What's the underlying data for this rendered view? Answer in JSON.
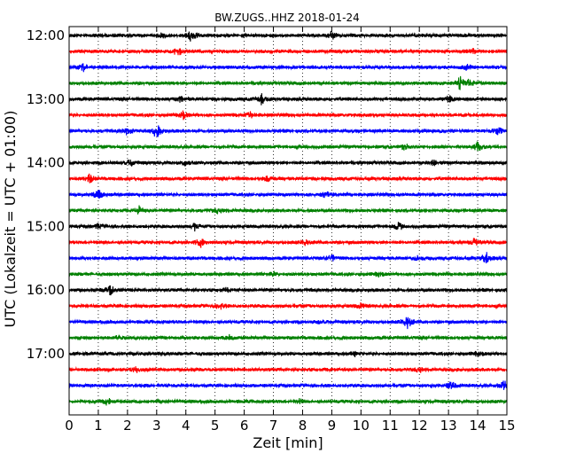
{
  "chart_data": {
    "type": "line",
    "title": "BW.ZUGS..HHZ 2018-01-24",
    "xlabel": "Zeit  [min]",
    "ylabel": "UTC (Lokalzeit = UTC + 01:00)",
    "xlim": [
      0,
      15
    ],
    "x_ticks": [
      0,
      1,
      2,
      3,
      4,
      5,
      6,
      7,
      8,
      9,
      10,
      11,
      12,
      13,
      14,
      15
    ],
    "x_tick_labels": [
      "0",
      "1",
      "2",
      "3",
      "4",
      "5",
      "6",
      "7",
      "8",
      "9",
      "10",
      "11",
      "12",
      "13",
      "14",
      "15"
    ],
    "y_tick_labels": [
      "12:00",
      "13:00",
      "14:00",
      "15:00",
      "16:00",
      "17:00"
    ],
    "grid": "vertical dotted",
    "trace_colors": [
      "#000000",
      "#ff0000",
      "#0000ff",
      "#008000"
    ],
    "traces": [
      {
        "start": "12:00",
        "events": [
          [
            4.2,
            1.0
          ],
          [
            9.0,
            0.6
          ],
          [
            3.2,
            0.4
          ]
        ]
      },
      {
        "start": "12:15",
        "events": [
          [
            3.7,
            0.9
          ],
          [
            13.8,
            0.5
          ]
        ]
      },
      {
        "start": "12:30",
        "events": [
          [
            0.5,
            0.6
          ],
          [
            13.6,
            0.5
          ]
        ]
      },
      {
        "start": "12:45",
        "events": [
          [
            13.4,
            1.0
          ],
          [
            13.7,
            0.7
          ]
        ]
      },
      {
        "start": "13:00",
        "events": [
          [
            6.6,
            0.9
          ],
          [
            13.0,
            0.6
          ],
          [
            3.8,
            0.5
          ]
        ]
      },
      {
        "start": "13:15",
        "events": [
          [
            3.9,
            0.6
          ],
          [
            6.2,
            0.4
          ]
        ]
      },
      {
        "start": "13:30",
        "events": [
          [
            3.0,
            1.2
          ],
          [
            2.0,
            0.6
          ],
          [
            14.7,
            0.5
          ]
        ]
      },
      {
        "start": "13:45",
        "events": [
          [
            14.0,
            0.7
          ],
          [
            11.5,
            0.5
          ]
        ]
      },
      {
        "start": "14:00",
        "events": [
          [
            2.1,
            0.5
          ],
          [
            4.0,
            0.5
          ],
          [
            12.5,
            0.4
          ]
        ]
      },
      {
        "start": "14:15",
        "events": [
          [
            0.7,
            0.6
          ],
          [
            6.8,
            0.4
          ]
        ]
      },
      {
        "start": "14:30",
        "events": [
          [
            1.0,
            0.8
          ],
          [
            8.8,
            0.5
          ]
        ]
      },
      {
        "start": "14:45",
        "events": [
          [
            2.4,
            0.6
          ],
          [
            5.1,
            0.4
          ]
        ]
      },
      {
        "start": "15:00",
        "events": [
          [
            4.3,
            0.6
          ],
          [
            11.3,
            0.6
          ],
          [
            1.0,
            0.4
          ]
        ]
      },
      {
        "start": "15:15",
        "events": [
          [
            4.5,
            0.7
          ],
          [
            13.9,
            0.6
          ],
          [
            8.1,
            0.4
          ]
        ]
      },
      {
        "start": "15:30",
        "events": [
          [
            14.3,
            1.0
          ],
          [
            9.0,
            0.6
          ],
          [
            12.0,
            0.5
          ]
        ]
      },
      {
        "start": "15:45",
        "events": [
          [
            7.0,
            0.4
          ],
          [
            10.6,
            0.4
          ]
        ]
      },
      {
        "start": "16:00",
        "events": [
          [
            1.4,
            0.8
          ],
          [
            5.4,
            0.3
          ]
        ]
      },
      {
        "start": "16:15",
        "events": [
          [
            5.2,
            0.6
          ],
          [
            10.0,
            0.4
          ]
        ]
      },
      {
        "start": "16:30",
        "events": [
          [
            11.6,
            1.0
          ],
          [
            8.6,
            0.3
          ]
        ]
      },
      {
        "start": "16:45",
        "events": [
          [
            5.5,
            0.4
          ],
          [
            1.7,
            0.3
          ]
        ]
      },
      {
        "start": "17:00",
        "events": [
          [
            9.8,
            0.4
          ],
          [
            14.0,
            0.4
          ]
        ]
      },
      {
        "start": "17:15",
        "events": [
          [
            2.3,
            0.4
          ],
          [
            12.0,
            0.4
          ]
        ]
      },
      {
        "start": "17:30",
        "events": [
          [
            14.9,
            0.8
          ],
          [
            13.1,
            0.6
          ]
        ]
      },
      {
        "start": "17:45",
        "events": [
          [
            1.3,
            0.5
          ],
          [
            7.9,
            0.3
          ]
        ]
      }
    ]
  }
}
